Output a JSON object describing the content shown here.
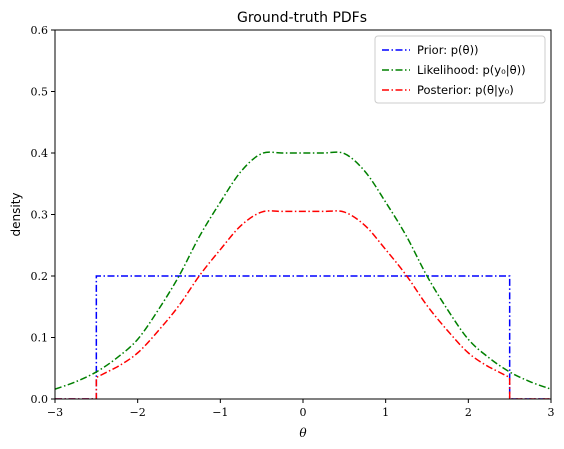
{
  "chart_data": {
    "type": "line",
    "title": "Ground-truth PDFs",
    "xlabel": "θ",
    "ylabel": "density",
    "xlim": [
      -3,
      3
    ],
    "ylim": [
      0,
      0.6
    ],
    "x_ticks": [
      -3,
      -2,
      -1,
      0,
      1,
      2,
      3
    ],
    "x_tick_labels": [
      "−3",
      "−2",
      "−1",
      "0",
      "1",
      "2",
      "3"
    ],
    "y_ticks": [
      0.0,
      0.1,
      0.2,
      0.3,
      0.4,
      0.5,
      0.6
    ],
    "y_tick_labels": [
      "0.0",
      "0.1",
      "0.2",
      "0.3",
      "0.4",
      "0.5",
      "0.6"
    ],
    "grid": false,
    "legend_position": "top-right",
    "line_style": "dash-dot",
    "series": [
      {
        "name": "Prior: p(θ))",
        "color": "#0000ff",
        "points": [
          [
            -3,
            0
          ],
          [
            -2.5,
            0
          ],
          [
            -2.5,
            0.2
          ],
          [
            2.5,
            0.2
          ],
          [
            2.5,
            0
          ],
          [
            3,
            0
          ]
        ]
      },
      {
        "name": "Likelihood: p(y₀|θ))",
        "color": "#008000",
        "points": [
          [
            -3,
            0.016
          ],
          [
            -2.75,
            0.028
          ],
          [
            -2.5,
            0.044
          ],
          [
            -2.25,
            0.067
          ],
          [
            -2,
            0.097
          ],
          [
            -1.75,
            0.145
          ],
          [
            -1.5,
            0.2
          ],
          [
            -1.25,
            0.265
          ],
          [
            -1,
            0.32
          ],
          [
            -0.75,
            0.37
          ],
          [
            -0.5,
            0.399
          ],
          [
            -0.25,
            0.4
          ],
          [
            0,
            0.4
          ],
          [
            0.25,
            0.4
          ],
          [
            0.5,
            0.399
          ],
          [
            0.75,
            0.37
          ],
          [
            1,
            0.32
          ],
          [
            1.25,
            0.265
          ],
          [
            1.5,
            0.2
          ],
          [
            1.75,
            0.145
          ],
          [
            2,
            0.097
          ],
          [
            2.25,
            0.067
          ],
          [
            2.5,
            0.044
          ],
          [
            2.75,
            0.028
          ],
          [
            3,
            0.016
          ]
        ]
      },
      {
        "name": "Posterior: p(θ|y₀)",
        "color": "#ff0000",
        "points": [
          [
            -3,
            0
          ],
          [
            -2.5,
            0
          ],
          [
            -2.5,
            0.035
          ],
          [
            -2.25,
            0.052
          ],
          [
            -2,
            0.075
          ],
          [
            -1.75,
            0.111
          ],
          [
            -1.5,
            0.152
          ],
          [
            -1.25,
            0.201
          ],
          [
            -1,
            0.243
          ],
          [
            -0.75,
            0.282
          ],
          [
            -0.5,
            0.304
          ],
          [
            -0.25,
            0.305
          ],
          [
            0,
            0.305
          ],
          [
            0.25,
            0.305
          ],
          [
            0.5,
            0.304
          ],
          [
            0.75,
            0.282
          ],
          [
            1,
            0.243
          ],
          [
            1.25,
            0.201
          ],
          [
            1.5,
            0.152
          ],
          [
            1.75,
            0.111
          ],
          [
            2,
            0.075
          ],
          [
            2.25,
            0.052
          ],
          [
            2.5,
            0.035
          ],
          [
            2.5,
            0
          ],
          [
            3,
            0
          ]
        ]
      }
    ]
  }
}
